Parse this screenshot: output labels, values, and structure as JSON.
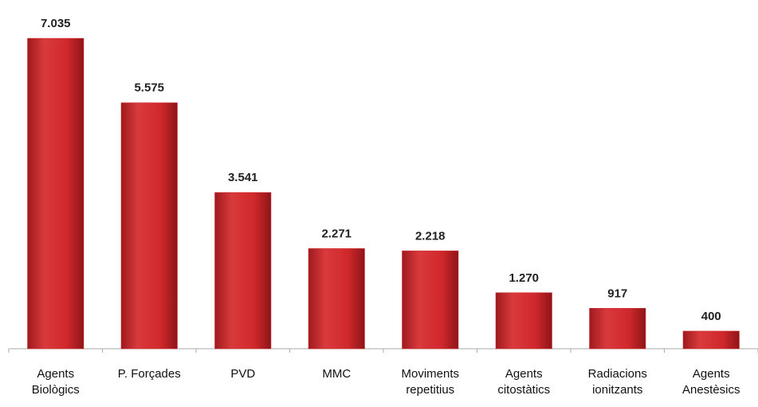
{
  "chart_data": {
    "type": "bar",
    "categories": [
      "Agents\nBiològics",
      "P. Forçades",
      "PVD",
      "MMC",
      "Moviments\nrepetitius",
      "Agents\ncitostàtics",
      "Radiacions\nionitzants",
      "Agents\nAnestèsics"
    ],
    "values": [
      7035,
      5575,
      3541,
      2271,
      2218,
      1270,
      917,
      400
    ],
    "value_labels": [
      "7.035",
      "5.575",
      "3.541",
      "2.271",
      "2.218",
      "1.270",
      "917",
      "400"
    ],
    "color": "#d0282c"
  }
}
